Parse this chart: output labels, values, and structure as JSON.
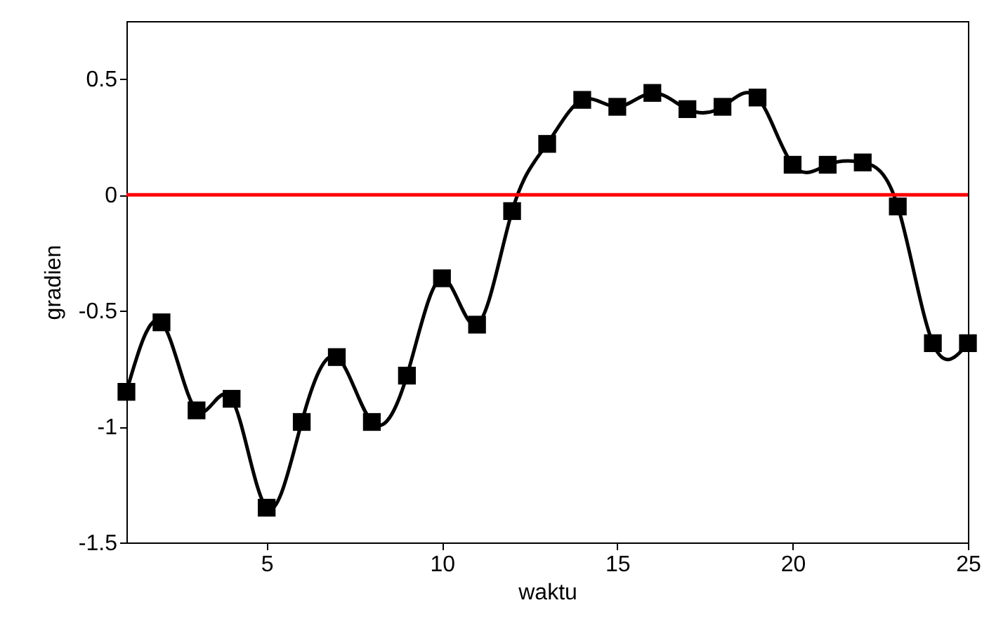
{
  "chart_data": {
    "type": "line",
    "xlabel": "waktu",
    "ylabel": "gradien",
    "x": [
      1,
      2,
      3,
      4,
      5,
      6,
      7,
      8,
      9,
      10,
      11,
      12,
      13,
      14,
      15,
      16,
      17,
      18,
      19,
      20,
      21,
      22,
      23,
      24,
      25
    ],
    "series": [
      {
        "color": "#000000",
        "values": [
          -0.85,
          -0.55,
          -0.93,
          -0.88,
          -1.35,
          -0.98,
          -0.7,
          -0.98,
          -0.78,
          -0.36,
          -0.56,
          -0.07,
          0.22,
          0.41,
          0.38,
          0.44,
          0.37,
          0.38,
          0.42,
          0.13,
          0.13,
          0.14,
          -0.05,
          -0.64,
          -0.64
        ]
      }
    ],
    "xlim": [
      1,
      25
    ],
    "xticks": [
      5,
      10,
      15,
      20,
      25
    ],
    "ylim": [
      -1.5,
      0.75
    ],
    "yticks": [
      -1.5,
      -1,
      -0.5,
      0,
      0.5
    ],
    "marker": "square",
    "line_style": "solid",
    "grid": false,
    "ref_lines": [
      {
        "axis": "y",
        "value": 0,
        "color": "#ff0000"
      }
    ]
  }
}
